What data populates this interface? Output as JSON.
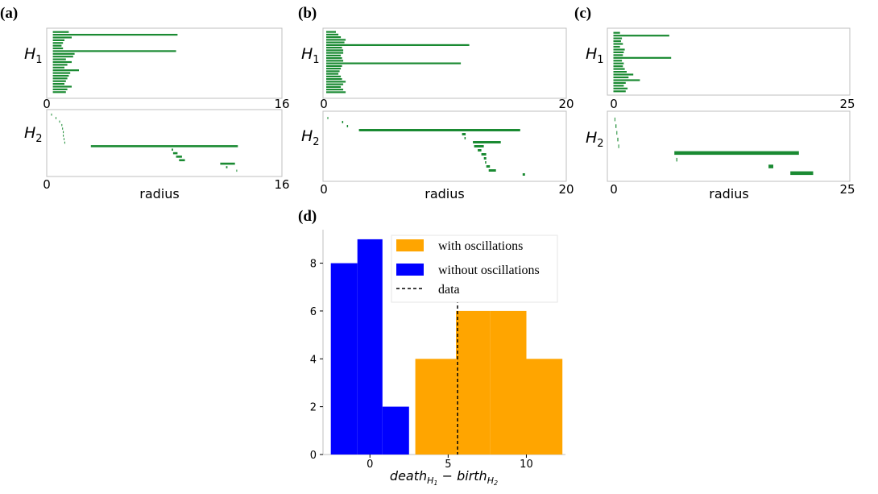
{
  "chart_data": [
    {
      "panel": "(a)",
      "type": "barcode",
      "h1": {
        "label": "H",
        "sub": "1",
        "xlim": [
          0,
          16
        ],
        "bars": [
          [
            0.2,
            1.3
          ],
          [
            0.2,
            8.8
          ],
          [
            0.2,
            1.5
          ],
          [
            0.2,
            1.0
          ],
          [
            0.2,
            0.9
          ],
          [
            0.2,
            0.8
          ],
          [
            0.2,
            0.9
          ],
          [
            0.2,
            8.7
          ],
          [
            0.2,
            1.7
          ],
          [
            0.2,
            1.6
          ],
          [
            0.2,
            1.1
          ],
          [
            0.2,
            1.5
          ],
          [
            0.2,
            1.2
          ],
          [
            0.2,
            1.0
          ],
          [
            0.2,
            2.0
          ],
          [
            0.2,
            1.4
          ],
          [
            0.2,
            1.3
          ],
          [
            0.2,
            1.2
          ],
          [
            0.2,
            1.1
          ],
          [
            0.2,
            1.0
          ],
          [
            0.2,
            1.5
          ],
          [
            0.2,
            1.2
          ],
          [
            0.2,
            1.1
          ]
        ]
      },
      "h2": {
        "label": "H",
        "sub": "2",
        "xlim": [
          0,
          16
        ],
        "xlabel": "radius",
        "bars": [
          [
            0.3,
            0.32
          ],
          [
            0.6,
            0.62
          ],
          [
            0.85,
            0.87
          ],
          [
            1.0,
            1.02
          ],
          [
            1.05,
            1.07
          ],
          [
            1.1,
            1.12
          ],
          [
            1.1,
            1.15
          ],
          [
            1.15,
            1.2
          ],
          [
            1.2,
            1.25
          ],
          [
            3.0,
            13.0
          ],
          [
            8.5,
            8.6
          ],
          [
            8.6,
            8.9
          ],
          [
            8.8,
            9.2
          ],
          [
            9.0,
            9.4
          ],
          [
            11.8,
            12.8
          ],
          [
            12.2,
            12.3
          ],
          [
            12.9,
            12.95
          ]
        ]
      }
    },
    {
      "panel": "(b)",
      "type": "barcode",
      "h1": {
        "label": "H",
        "sub": "1",
        "xlim": [
          0,
          20
        ],
        "bars": [
          [
            0.2,
            1.0
          ],
          [
            0.2,
            1.2
          ],
          [
            0.2,
            1.4
          ],
          [
            0.2,
            1.8
          ],
          [
            0.2,
            1.7
          ],
          [
            0.2,
            12.0
          ],
          [
            0.2,
            1.5
          ],
          [
            0.2,
            1.6
          ],
          [
            0.2,
            1.6
          ],
          [
            0.2,
            1.4
          ],
          [
            0.2,
            1.5
          ],
          [
            0.2,
            1.6
          ],
          [
            0.2,
            11.3
          ],
          [
            0.2,
            1.5
          ],
          [
            0.2,
            1.4
          ],
          [
            0.2,
            1.3
          ],
          [
            0.2,
            1.2
          ],
          [
            0.2,
            1.4
          ],
          [
            0.2,
            1.5
          ],
          [
            0.2,
            1.8
          ],
          [
            0.2,
            1.6
          ],
          [
            0.2,
            1.4
          ],
          [
            0.2,
            1.6
          ],
          [
            0.2,
            1.8
          ]
        ]
      },
      "h2": {
        "label": "H",
        "sub": "2",
        "xlim": [
          0,
          20
        ],
        "xlabel": "radius",
        "bars": [
          [
            0.3,
            0.35
          ],
          [
            1.5,
            1.6
          ],
          [
            1.9,
            2.0
          ],
          [
            2.9,
            16.2
          ],
          [
            11.4,
            11.7
          ],
          [
            11.6,
            11.7
          ],
          [
            12.3,
            14.6
          ],
          [
            12.4,
            13.2
          ],
          [
            12.7,
            13.0
          ],
          [
            13.0,
            13.4
          ],
          [
            13.2,
            13.4
          ],
          [
            13.3,
            13.4
          ],
          [
            13.4,
            13.7
          ],
          [
            13.6,
            14.2
          ],
          [
            16.4,
            16.6
          ]
        ]
      }
    },
    {
      "panel": "(c)",
      "type": "barcode",
      "h1": {
        "label": "H",
        "sub": "1",
        "xlim": [
          0,
          25
        ],
        "bars": [
          [
            0.3,
            1.0
          ],
          [
            0.3,
            6.2
          ],
          [
            0.3,
            1.2
          ],
          [
            0.3,
            1.1
          ],
          [
            0.3,
            1.3
          ],
          [
            0.3,
            1.0
          ],
          [
            0.3,
            1.5
          ],
          [
            0.3,
            1.4
          ],
          [
            0.3,
            1.3
          ],
          [
            0.3,
            6.4
          ],
          [
            0.3,
            1.2
          ],
          [
            0.3,
            1.4
          ],
          [
            0.3,
            1.3
          ],
          [
            0.3,
            1.5
          ],
          [
            0.3,
            1.7
          ],
          [
            0.3,
            2.4
          ],
          [
            0.3,
            1.9
          ],
          [
            0.3,
            3.1
          ],
          [
            0.3,
            1.6
          ],
          [
            0.3,
            1.4
          ],
          [
            0.3,
            1.8
          ],
          [
            0.3,
            1.6
          ]
        ]
      },
      "h2": {
        "label": "H",
        "sub": "2",
        "xlim": [
          0,
          25
        ],
        "xlabel": "radius",
        "bars": [
          [
            0.5,
            0.55
          ],
          [
            0.6,
            0.7
          ],
          [
            0.7,
            0.75
          ],
          [
            0.8,
            0.9
          ],
          [
            0.9,
            0.95
          ],
          [
            6.8,
            19.9
          ],
          [
            7.0,
            7.1
          ],
          [
            16.7,
            17.2
          ],
          [
            19.0,
            21.4
          ]
        ]
      }
    },
    {
      "panel": "(d)",
      "type": "bar",
      "xlabel": "death",
      "xlabel_sub1": "H",
      "xlabel_sub1b": "1",
      "xlabel_minus": " − ",
      "xlabel_part2": "birth",
      "xlabel_sub2": "H",
      "xlabel_sub2b": "2",
      "xlim": [
        -3.0,
        12.5
      ],
      "ylim": [
        0,
        9.4
      ],
      "xticks": [
        0,
        5,
        10
      ],
      "yticks": [
        0,
        2,
        4,
        6,
        8
      ],
      "series": [
        {
          "name": "with oscillations",
          "color": "#ffa500",
          "bins": [
            [
              2.9,
              5.5,
              4
            ],
            [
              5.5,
              7.7,
              6
            ],
            [
              7.7,
              10.0,
              6
            ],
            [
              10.0,
              12.3,
              4
            ]
          ]
        },
        {
          "name": "without oscillations",
          "color": "#0000ff",
          "bins": [
            [
              -2.5,
              -0.8,
              8
            ],
            [
              -0.8,
              0.8,
              9
            ],
            [
              0.8,
              2.5,
              2
            ]
          ]
        }
      ],
      "data_line": {
        "name": "data",
        "x": 5.6
      },
      "legend_position": "top-right"
    }
  ]
}
